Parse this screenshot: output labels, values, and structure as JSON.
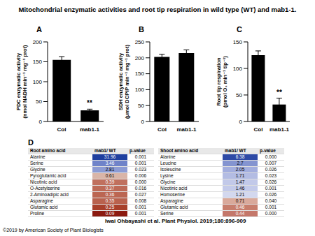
{
  "title": "Mitochondrial enzymatic activities and root tip respiration in wild type (WT) and mab1-1.",
  "chart_data": [
    {
      "type": "bar",
      "panel": "A",
      "y_label": "PDC enzymatic activity (nmol NADH min⁻¹ mg⁻¹ prot)",
      "categories": [
        "Col",
        "mab1-1"
      ],
      "values": [
        155,
        28
      ],
      "errors": [
        8,
        3
      ],
      "color": "#000000",
      "ylim": [
        0,
        200
      ],
      "yticks": [
        0,
        50,
        100,
        150,
        200
      ],
      "annotations": [
        {
          "category": "mab1-1",
          "text": "**"
        }
      ]
    },
    {
      "type": "bar",
      "panel": "B",
      "y_label": "SDH enzymatic activity (µmol DCPIP min⁻¹ mg⁻¹ prot)",
      "categories": [
        "Col",
        "mab1-1"
      ],
      "values": [
        203,
        215
      ],
      "errors": [
        8,
        10
      ],
      "color": "#000000",
      "ylim": [
        0,
        250
      ],
      "yticks": [
        0,
        50,
        100,
        150,
        200,
        250
      ],
      "annotations": []
    },
    {
      "type": "bar",
      "panel": "C",
      "y_label": "Root tip respiration (pmol O₂ min⁻¹ tip⁻¹)",
      "categories": [
        "Col",
        "mab1-1"
      ],
      "values": [
        125,
        32
      ],
      "errors": [
        8,
        12
      ],
      "color": "#000000",
      "ylim": [
        0,
        150
      ],
      "yticks": [
        0,
        50,
        100,
        150
      ],
      "annotations": [
        {
          "category": "mab1-1",
          "text": "**"
        }
      ]
    }
  ],
  "table_panel": "D",
  "tables": [
    {
      "header": [
        "Root amino acid",
        "mab1/ WT",
        "p-value"
      ],
      "rows": [
        {
          "name": "Alanine",
          "ratio": "31.96",
          "p": "0.001",
          "color": "#1f3f9f"
        },
        {
          "name": "Serine",
          "ratio": "3.46",
          "p": "0.001",
          "color": "#6f83c9"
        },
        {
          "name": "Glycine",
          "ratio": "2.81",
          "p": "0.023",
          "color": "#8c9bd4"
        },
        {
          "name": "Pyroglutamic acid",
          "ratio": "0.61",
          "p": "0.006",
          "color": "#d9b5a8"
        },
        {
          "name": "Nicotinic acid",
          "ratio": "0.39",
          "p": "0.000",
          "color": "#c0705e"
        },
        {
          "name": "O-Acetylserine",
          "ratio": "0.37",
          "p": "0.016",
          "color": "#bd6a57"
        },
        {
          "name": "2-Aminoadipic acid",
          "ratio": "0.36",
          "p": "0.027",
          "color": "#bb6652"
        },
        {
          "name": "Asparagine",
          "ratio": "0.35",
          "p": "0.008",
          "color": "#b9624e"
        },
        {
          "name": "Glutamic acid",
          "ratio": "0.25",
          "p": "0.001",
          "color": "#a8402b"
        },
        {
          "name": "Proline",
          "ratio": "0.09",
          "p": "0.001",
          "color": "#8b1a10"
        }
      ]
    },
    {
      "header": [
        "Shoot amino acid",
        "mab1/ WT",
        "p-value"
      ],
      "rows": [
        {
          "name": "Alanine",
          "ratio": "6.38",
          "p": "0.000",
          "color": "#2e4aa6"
        },
        {
          "name": "Leucine",
          "ratio": "2.7",
          "p": "0.007",
          "color": "#8494d0"
        },
        {
          "name": "Isoleucine",
          "ratio": "2.05",
          "p": "0.026",
          "color": "#a3aede"
        },
        {
          "name": "Lysine",
          "ratio": "1.71",
          "p": "0.023",
          "color": "#b3bce3"
        },
        {
          "name": "Glycine",
          "ratio": "1.47",
          "p": "0.026",
          "color": "#c2c9e9"
        },
        {
          "name": "Nicotinic acid",
          "ratio": "1.46",
          "p": "0.001",
          "color": "#c3caea"
        },
        {
          "name": "Homoserine",
          "ratio": "1.21",
          "p": "0.026",
          "color": "#d3d8ef"
        },
        {
          "name": "Asparagine",
          "ratio": "0.71",
          "p": "0.040",
          "color": "#d9a99b"
        },
        {
          "name": "Glutamic acid",
          "ratio": "0.46",
          "p": "0.001",
          "color": "#c77e6d"
        },
        {
          "name": "Serine",
          "ratio": "0.44",
          "p": "0.000",
          "color": "#c4776a"
        }
      ]
    }
  ],
  "citation": "Iwai Ohbayashi et al. Plant Physiol. 2019;180:896-909",
  "copyright": "©2019 by American Society of Plant Biologists"
}
